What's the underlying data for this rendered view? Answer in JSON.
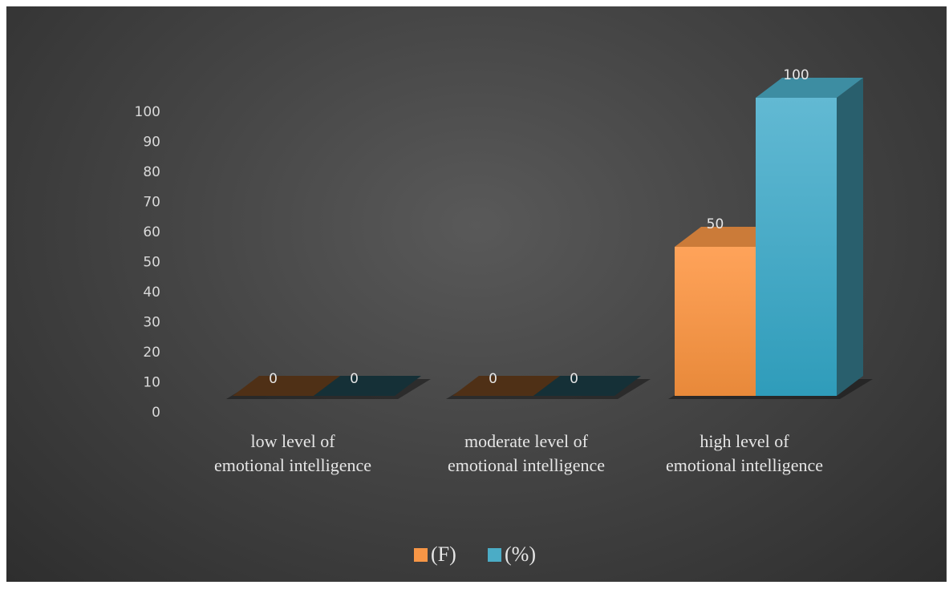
{
  "chart_data": {
    "type": "bar",
    "three_d": true,
    "categories": [
      [
        "low level of",
        "emotional intelligence"
      ],
      [
        "moderate level of",
        "emotional intelligence"
      ],
      [
        "high level of",
        "emotional intelligence"
      ]
    ],
    "series": [
      {
        "name": "(F)",
        "values": [
          0,
          0,
          50
        ],
        "color": "#f79646"
      },
      {
        "name": "(%)",
        "values": [
          0,
          0,
          100
        ],
        "color": "#4bacc6"
      }
    ],
    "y_ticks": [
      0,
      10,
      20,
      30,
      40,
      50,
      60,
      70,
      80,
      90,
      100
    ],
    "ylim": [
      0,
      100
    ],
    "data_labels": true,
    "grid": false,
    "legend": "bottom-center",
    "background": "#4a4a4a"
  }
}
